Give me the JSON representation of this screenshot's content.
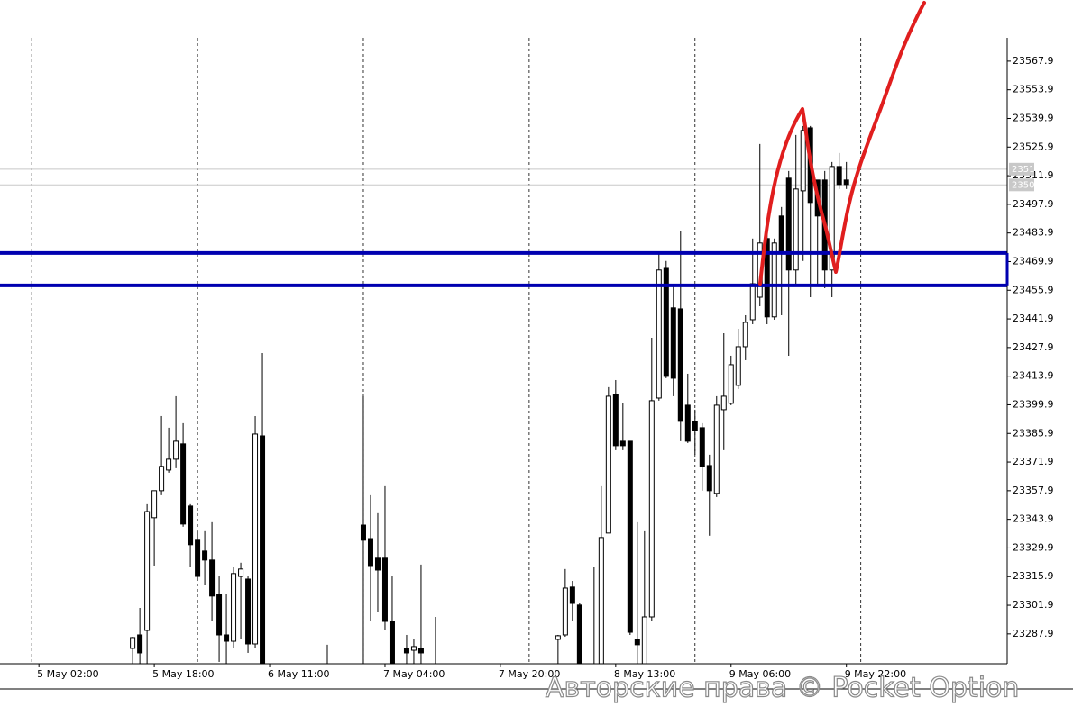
{
  "chart_data": {
    "type": "candlestick",
    "watermark": "Авторские права © Pocket Option",
    "xlim": [
      -5.4,
      134.3
    ],
    "ylim": [
      23273.3,
      23579.3
    ],
    "xticks": [
      {
        "value": 0,
        "label": "5 May 02:00"
      },
      {
        "value": 16,
        "label": "5 May 18:00"
      },
      {
        "value": 32,
        "label": "6 May 11:00"
      },
      {
        "value": 48,
        "label": "7 May 04:00"
      },
      {
        "value": 64,
        "label": "7 May 20:00"
      },
      {
        "value": 80,
        "label": "8 May 13:00"
      },
      {
        "value": 96,
        "label": "9 May 06:00"
      },
      {
        "value": 112,
        "label": "9 May 22:00"
      }
    ],
    "yticks": [
      23287.9,
      23301.9,
      23315.9,
      23329.9,
      23343.9,
      23357.9,
      23371.9,
      23385.9,
      23399.9,
      23413.9,
      23427.9,
      23441.9,
      23455.9,
      23469.9,
      23483.9,
      23497.9,
      23511.9,
      23525.9,
      23539.9,
      23553.9,
      23567.9
    ],
    "period_separators": [
      -1,
      22,
      45,
      68,
      91,
      114
    ],
    "up_color": "#ffffff",
    "down_color": "#000000",
    "price_lines": [
      {
        "value": 23515.1,
        "color": "#c8c8c8"
      },
      {
        "value": 23507.4,
        "color": "#c8c8c8"
      }
    ],
    "levels": [
      {
        "value": 23474.1,
        "color": "#0000b0"
      },
      {
        "value": 23458.3,
        "color": "#0000b0"
      }
    ],
    "x": [
      13,
      14,
      15,
      16,
      17,
      18,
      19,
      20,
      21,
      22,
      23,
      24,
      25,
      26,
      27,
      28,
      29,
      30,
      31,
      40,
      45,
      46,
      47,
      48,
      49,
      51,
      52,
      53,
      55,
      72,
      73,
      74,
      75,
      77,
      78,
      79,
      80,
      81,
      82,
      83,
      84,
      85,
      86,
      87,
      88,
      89,
      90,
      91,
      92,
      93,
      94,
      95,
      96,
      97,
      98,
      99,
      100,
      101,
      102,
      103,
      104,
      105,
      106,
      107,
      108,
      109,
      110,
      111,
      112
    ],
    "open": [
      23280.8,
      23287.4,
      23289.6,
      23344.7,
      23357.9,
      23368.0,
      23373.3,
      23380.8,
      23350.4,
      23333.7,
      23328.4,
      23324.0,
      23307.2,
      23287.4,
      23284.3,
      23316.0,
      23314.7,
      23283.0,
      23384.7,
      23268,
      23341.1,
      23334.5,
      23324.9,
      23324.9,
      23294.0,
      23280.8,
      23279.9,
      23280.8,
      23270,
      23285.2,
      23287.4,
      23310.8,
      23302.0,
      23270,
      23268,
      23337.2,
      23405.0,
      23382.1,
      23382.1,
      23285.2,
      23268,
      23296.2,
      23403.2,
      23466.6,
      23447.3,
      23446.8,
      23399.7,
      23391.8,
      23388.7,
      23370.2,
      23356.6,
      23397.5,
      23400.6,
      23409.4,
      23428.3,
      23441.5,
      23452.5,
      23481.2,
      23442.9,
      23492.2,
      23510.7,
      23465.8,
      23504.5,
      23535.3,
      23509.8,
      23509.8,
      23465.8,
      23516.4,
      23509.8
    ],
    "high": [
      23286.5,
      23300.6,
      23351.3,
      23357.9,
      23394.4,
      23388.7,
      23404.1,
      23390.9,
      23351.3,
      23338.1,
      23338.1,
      23342.5,
      23316.0,
      23307.2,
      23320.5,
      23322.7,
      23316.0,
      23394.4,
      23425.2,
      23282.6,
      23404.1,
      23355.7,
      23346.9,
      23360.1,
      23316.0,
      23287.4,
      23285.2,
      23321.8,
      23296.2,
      23287.4,
      23319.6,
      23313.8,
      23302.8,
      23320.5,
      23360.1,
      23408.5,
      23412.0,
      23400.6,
      23382.1,
      23342.5,
      23338.1,
      23432.7,
      23474.6,
      23470.2,
      23459.1,
      23485.1,
      23415.1,
      23397.5,
      23390.9,
      23375.5,
      23404.1,
      23434.9,
      23423.9,
      23437.1,
      23443.7,
      23481.2,
      23527.4,
      23485.6,
      23481.2,
      23496.6,
      23514.2,
      23531.8,
      23536.2,
      23536.2,
      23509.8,
      23514.2,
      23518.6,
      23523.0,
      23518.6
    ],
    "low": [
      23265,
      23265,
      23265,
      23321.3,
      23355.7,
      23366.7,
      23368.9,
      23340.3,
      23320.5,
      23313.8,
      23311.6,
      23294.0,
      23274.2,
      23265,
      23280.8,
      23285.2,
      23278.6,
      23280.8,
      23260,
      23262,
      23265,
      23294.0,
      23298.4,
      23289.6,
      23262,
      23265,
      23270,
      23265,
      23262,
      23265,
      23286.5,
      23294.0,
      23262,
      23262,
      23262,
      23337.2,
      23377.7,
      23377.7,
      23287.4,
      23265,
      23262,
      23294.0,
      23401.9,
      23412.9,
      23404.1,
      23382.1,
      23381.2,
      23375.5,
      23357.9,
      23335.9,
      23354.8,
      23377.7,
      23399.7,
      23407.6,
      23421.7,
      23439.3,
      23448.1,
      23439.3,
      23441.5,
      23443.7,
      23423.9,
      23459.1,
      23470.2,
      23452.5,
      23459.1,
      23456.9,
      23452.5,
      23505.4,
      23505.4
    ],
    "close": [
      23286.1,
      23278.6,
      23347.7,
      23357.9,
      23369.8,
      23373.3,
      23382.1,
      23341.6,
      23331.5,
      23316.0,
      23324.0,
      23306.4,
      23287.4,
      23284.3,
      23317.4,
      23319.6,
      23283.0,
      23385.6,
      23265,
      23266,
      23333.7,
      23321.3,
      23319.1,
      23294.0,
      23268,
      23278.6,
      23281.7,
      23278.6,
      23268,
      23287.0,
      23310.3,
      23302.8,
      23268,
      23272,
      23335.0,
      23404.1,
      23379.9,
      23379.9,
      23288.7,
      23282.6,
      23296.2,
      23401.9,
      23465.8,
      23413.8,
      23412.9,
      23391.8,
      23382.1,
      23387.4,
      23369.8,
      23357.9,
      23399.7,
      23404.1,
      23419.5,
      23428.3,
      23440.2,
      23459.1,
      23479.0,
      23442.9,
      23479.0,
      23474.6,
      23465.8,
      23505.4,
      23534.0,
      23498.8,
      23492.2,
      23465.8,
      23516.4,
      23507.6,
      23507.6
    ]
  }
}
